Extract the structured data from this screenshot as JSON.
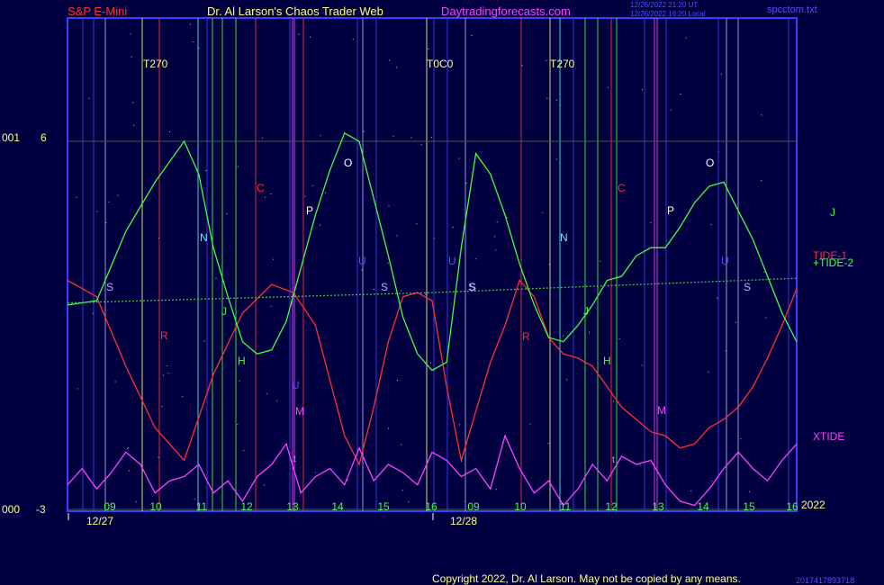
{
  "header": {
    "symbol": "S&P E-Mini",
    "author": "Dr. Al Larson's Chaos Trader Web",
    "site": "Daytradingforecasts.com",
    "stamp_line1": "12/26/2022 21:20 UT",
    "stamp_line2": "12/26/2022 16:20 Local",
    "file": "spcctom.txt"
  },
  "footer": {
    "copyright": "Copyright 2022, Dr. Al Larson. May not be copied by any means.",
    "year": "2022",
    "readout": "2017417893718"
  },
  "colors": {
    "background": "#000040",
    "frame": "#3c3cff",
    "tide1": "#ff3030",
    "tide2": "#40ff40",
    "xtide": "#ff40ff",
    "trend": "#40c040"
  },
  "chart_data": {
    "type": "line",
    "title": "S&P E-Mini",
    "y_axis": {
      "ylim": [
        -3,
        6
      ],
      "tick_labels": [
        "6",
        "-3"
      ],
      "left_labels": [
        "001",
        "000"
      ]
    },
    "x_axis": {
      "hour_ticks": [
        "09",
        "10",
        "11",
        "12",
        "13",
        "14",
        "15",
        "16",
        "09",
        "10",
        "11",
        "12",
        "13",
        "14",
        "15",
        "16"
      ],
      "dates": [
        "12/27",
        "12/28"
      ]
    },
    "event_labels": [
      "T270",
      "T0C0",
      "T270"
    ],
    "planet_labels": [
      {
        "t": "N",
        "c": "#40ffff"
      },
      {
        "t": "C",
        "c": "#ff3030"
      },
      {
        "t": "O",
        "c": "#ffffff"
      },
      {
        "t": "P",
        "c": "#ffffff"
      },
      {
        "t": "U",
        "c": "#5050ff"
      },
      {
        "t": "S",
        "c": "#b0b0ff"
      },
      {
        "t": "R",
        "c": "#ff3030"
      },
      {
        "t": "J",
        "c": "#40ff40"
      },
      {
        "t": "H",
        "c": "#40ff40"
      },
      {
        "t": "M",
        "c": "#ff40ff"
      },
      {
        "t": "S",
        "c": "#b0b0ff"
      },
      {
        "t": "U",
        "c": "#5050ff"
      },
      {
        "t": "S",
        "c": "#b0b0ff"
      },
      {
        "t": "S",
        "c": "#b0b0ff"
      },
      {
        "t": "R",
        "c": "#ff3030"
      },
      {
        "t": "N",
        "c": "#40ffff"
      },
      {
        "t": "C",
        "c": "#ff3030"
      },
      {
        "t": "P",
        "c": "#ffffff"
      },
      {
        "t": "O",
        "c": "#ffffff"
      },
      {
        "t": "U",
        "c": "#5050ff"
      },
      {
        "t": "S",
        "c": "#b0b0ff"
      },
      {
        "t": "J",
        "c": "#40ff40"
      },
      {
        "t": "H",
        "c": "#40ff40"
      },
      {
        "t": "M",
        "c": "#ff40ff"
      },
      {
        "t": "U",
        "c": "#5050ff"
      },
      {
        "t": "J",
        "c": "#40ff40"
      }
    ],
    "series": [
      {
        "name": "TIDE-1",
        "color": "#ff3030",
        "x": [
          0,
          4,
          8,
          12,
          16,
          20,
          24,
          28,
          31,
          34,
          38,
          40,
          42,
          44,
          46,
          48,
          50,
          52,
          54,
          56,
          58,
          60,
          62,
          64,
          66,
          68,
          70,
          72,
          74,
          76,
          78,
          80,
          82,
          84,
          86,
          88,
          90,
          92,
          94,
          96,
          98,
          100
        ],
        "values": [
          2.6,
          2.2,
          0.5,
          -1.0,
          -1.8,
          0.3,
          1.8,
          2.5,
          2.3,
          1.5,
          -1.2,
          -1.9,
          -0.5,
          1.1,
          2.2,
          2.3,
          2.1,
          0.0,
          -1.8,
          -0.6,
          0.6,
          1.5,
          2.6,
          2.2,
          1.2,
          0.8,
          0.7,
          0.5,
          0.0,
          -0.5,
          -0.8,
          -1.1,
          -1.2,
          -1.5,
          -1.4,
          -1.0,
          -0.8,
          -0.5,
          0.0,
          0.7,
          1.5,
          2.4
        ]
      },
      {
        "name": "TIDE-2",
        "color": "#40ff40",
        "x": [
          0,
          4,
          8,
          12,
          16,
          18,
          20,
          22,
          24,
          26,
          28,
          30,
          32,
          34,
          36,
          38,
          40,
          42,
          44,
          46,
          48,
          50,
          52,
          54,
          56,
          58,
          60,
          62,
          64,
          66,
          68,
          70,
          72,
          74,
          76,
          78,
          80,
          82,
          84,
          86,
          88,
          90,
          92,
          94,
          96,
          98,
          100
        ],
        "values": [
          2.0,
          2.1,
          3.8,
          5.0,
          6.0,
          5.2,
          3.4,
          2.2,
          1.1,
          0.8,
          0.9,
          1.6,
          2.9,
          4.2,
          5.3,
          6.2,
          6.0,
          4.6,
          3.2,
          1.7,
          0.8,
          0.4,
          0.6,
          3.4,
          5.7,
          5.2,
          4.2,
          3.0,
          2.0,
          1.2,
          1.1,
          1.5,
          2.0,
          2.6,
          2.7,
          3.2,
          3.4,
          3.4,
          3.9,
          4.5,
          4.9,
          5.0,
          4.3,
          3.6,
          2.7,
          1.8,
          1.1
        ]
      },
      {
        "name": "Trend",
        "color": "#40c040",
        "x": [
          0,
          50,
          100
        ],
        "values": [
          2.05,
          2.3,
          2.65
        ]
      },
      {
        "name": "XTIDE",
        "color": "#ff40ff",
        "x": [
          0,
          2,
          4,
          6,
          8,
          10,
          12,
          14,
          16,
          18,
          20,
          22,
          24,
          26,
          28,
          30,
          32,
          34,
          36,
          38,
          40,
          42,
          44,
          46,
          48,
          50,
          52,
          54,
          56,
          58,
          60,
          62,
          64,
          66,
          68,
          70,
          72,
          74,
          76,
          78,
          80,
          82,
          84,
          86,
          88,
          90,
          92,
          94,
          96,
          98,
          100
        ],
        "values": [
          -2.4,
          -2.0,
          -2.5,
          -2.1,
          -1.6,
          -1.9,
          -2.6,
          -2.3,
          -2.2,
          -1.9,
          -2.6,
          -2.3,
          -2.8,
          -2.2,
          -1.9,
          -1.4,
          -2.6,
          -2.2,
          -2.0,
          -2.4,
          -1.5,
          -2.3,
          -1.9,
          -2.1,
          -2.4,
          -1.6,
          -1.8,
          -2.2,
          -2.0,
          -2.5,
          -1.2,
          -2.0,
          -2.6,
          -2.3,
          -2.9,
          -2.5,
          -1.9,
          -2.3,
          -1.7,
          -1.9,
          -1.8,
          -2.4,
          -2.8,
          -2.9,
          -2.5,
          -2.0,
          -1.6,
          -2.0,
          -2.3,
          -1.8,
          -1.4
        ]
      }
    ]
  }
}
